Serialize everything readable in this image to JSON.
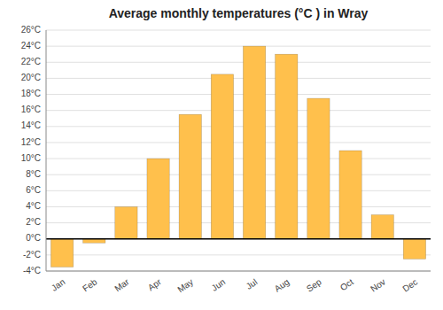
{
  "chart_data": {
    "type": "bar",
    "title": "Average monthly temperatures (°C ) in Wray",
    "categories": [
      "Jan",
      "Feb",
      "Mar",
      "Apr",
      "May",
      "Jun",
      "Jul",
      "Aug",
      "Sep",
      "Oct",
      "Nov",
      "Dec"
    ],
    "values": [
      -3.5,
      -0.5,
      4.0,
      10.0,
      15.5,
      20.5,
      24.0,
      23.0,
      17.5,
      11.0,
      3.0,
      -2.5
    ],
    "color": "#FFC04C",
    "ylim": [
      -4,
      26
    ],
    "yticks": [
      {
        "value": -4,
        "label": "-4°C"
      },
      {
        "value": -2,
        "label": "-2°C"
      },
      {
        "value": 0,
        "label": "0°C"
      },
      {
        "value": 2,
        "label": "2°C"
      },
      {
        "value": 4,
        "label": "4°C"
      },
      {
        "value": 6,
        "label": "6°C"
      },
      {
        "value": 8,
        "label": "8°C"
      },
      {
        "value": 10,
        "label": "10°C"
      },
      {
        "value": 12,
        "label": "12°C"
      },
      {
        "value": 14,
        "label": "14°C"
      },
      {
        "value": 16,
        "label": "16°C"
      },
      {
        "value": 18,
        "label": "18°C"
      },
      {
        "value": 20,
        "label": "20°C"
      },
      {
        "value": 22,
        "label": "22°C"
      },
      {
        "value": 24,
        "label": "24°C"
      },
      {
        "value": 26,
        "label": "26°C"
      }
    ],
    "grid": true
  }
}
